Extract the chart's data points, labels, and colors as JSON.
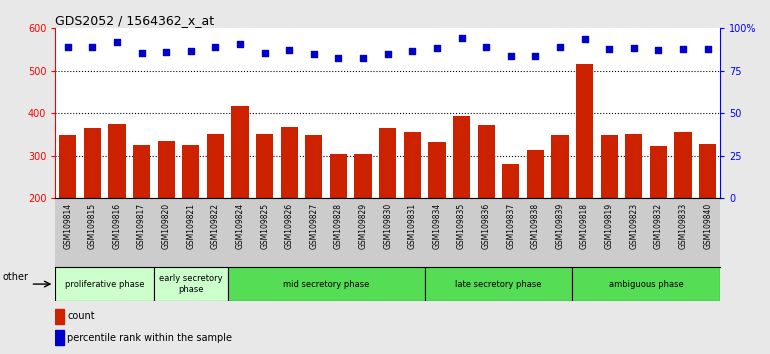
{
  "title": "GDS2052 / 1564362_x_at",
  "samples": [
    "GSM109814",
    "GSM109815",
    "GSM109816",
    "GSM109817",
    "GSM109820",
    "GSM109821",
    "GSM109822",
    "GSM109824",
    "GSM109825",
    "GSM109826",
    "GSM109827",
    "GSM109828",
    "GSM109829",
    "GSM109830",
    "GSM109831",
    "GSM109834",
    "GSM109835",
    "GSM109836",
    "GSM109837",
    "GSM109838",
    "GSM109839",
    "GSM109818",
    "GSM109819",
    "GSM109823",
    "GSM109832",
    "GSM109833",
    "GSM109840"
  ],
  "counts": [
    348,
    365,
    375,
    325,
    335,
    325,
    352,
    418,
    352,
    367,
    350,
    305,
    303,
    365,
    355,
    333,
    393,
    373,
    280,
    313,
    348,
    515,
    348,
    352,
    323,
    355,
    327
  ],
  "percentile_ranks": [
    556,
    557,
    567,
    541,
    544,
    546,
    556,
    563,
    543,
    549,
    540,
    531,
    529,
    539,
    546,
    553,
    578,
    555,
    534,
    534,
    556,
    576,
    551,
    553,
    548,
    551,
    551
  ],
  "bar_color": "#cc2200",
  "dot_color": "#0000cc",
  "ylim_left": [
    200,
    600
  ],
  "ylim_right": [
    0,
    100
  ],
  "yticks_left": [
    200,
    300,
    400,
    500,
    600
  ],
  "yticks_right": [
    0,
    25,
    50,
    75,
    100
  ],
  "grid_values": [
    300,
    400,
    500
  ],
  "phase_info": [
    {
      "start": 0,
      "end": 4,
      "color": "#ccffcc",
      "label": "proliferative phase"
    },
    {
      "start": 4,
      "end": 7,
      "color": "#ccffcc",
      "label": "early secretory\nphase"
    },
    {
      "start": 7,
      "end": 15,
      "color": "#55dd55",
      "label": "mid secretory phase"
    },
    {
      "start": 15,
      "end": 21,
      "color": "#55dd55",
      "label": "late secretory phase"
    },
    {
      "start": 21,
      "end": 27,
      "color": "#55dd55",
      "label": "ambiguous phase"
    }
  ],
  "legend_count_label": "count",
  "legend_pct_label": "percentile rank within the sample",
  "other_label": "other",
  "fig_bg_color": "#e8e8e8",
  "plot_bg_color": "#ffffff",
  "tick_area_bg_color": "#cccccc"
}
